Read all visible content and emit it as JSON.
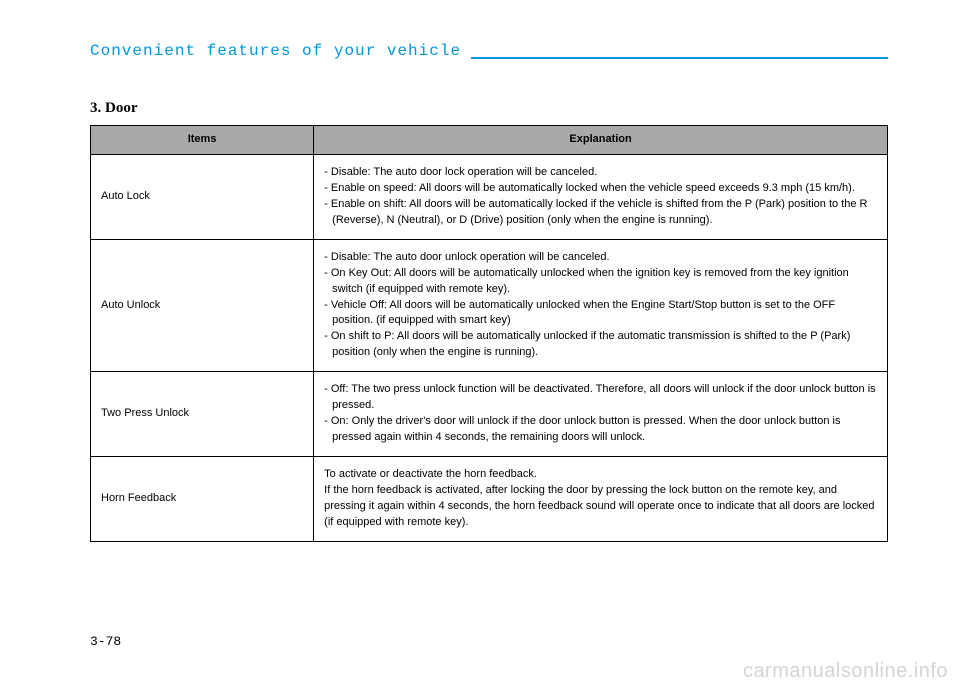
{
  "header": {
    "title": "Convenient features of your vehicle",
    "color": "#0096db"
  },
  "section": {
    "title": "3. Door"
  },
  "table": {
    "columns": [
      "Items",
      "Explanation"
    ],
    "header_bg": "#a9a9a9",
    "rows": [
      {
        "item": "Auto Lock",
        "explanation": [
          "- Disable: The auto door lock operation will be canceled.",
          "- Enable on speed: All doors will be automatically locked when the vehicle speed exceeds 9.3 mph (15 km/h).",
          "- Enable on shift: All doors will be automatically locked if the vehicle is shifted from the P (Park) position to the R (Reverse), N (Neutral), or D (Drive) position (only when the engine is running)."
        ]
      },
      {
        "item": "Auto Unlock",
        "explanation": [
          "- Disable: The auto door unlock operation will be canceled.",
          "- On Key Out: All doors will be automatically unlocked when the ignition key is removed from the key ignition switch (if equipped with remote key).",
          "- Vehicle Off: All doors will be automatically unlocked when the Engine Start/Stop button is set to the OFF position. (if equipped with smart key)",
          "- On shift to P: All doors will be automatically unlocked if the automatic transmission is shifted to the P (Park) position (only when the engine is running)."
        ]
      },
      {
        "item": "Two Press Unlock",
        "explanation": [
          "- Off: The two press unlock function will be deactivated. Therefore, all doors will unlock if the door unlock button is pressed.",
          "- On: Only the driver's door will unlock if the door unlock button is pressed. When the door unlock button is pressed again within 4 seconds, the remaining doors will unlock."
        ]
      },
      {
        "item": "Horn Feedback",
        "explanation": [
          "To activate or deactivate the horn feedback.",
          "If the horn feedback is activated, after locking the door by pressing the lock button on the remote key, and pressing it again within 4 seconds, the horn feedback sound will operate once to indicate that all doors are locked (if equipped with remote key)."
        ]
      }
    ]
  },
  "footer": {
    "page_number": "3-78",
    "watermark": "carmanualsonline.info"
  }
}
